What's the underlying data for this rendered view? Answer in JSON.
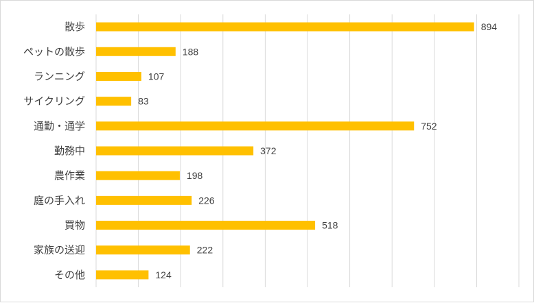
{
  "chart_data": {
    "type": "bar",
    "orientation": "horizontal",
    "categories": [
      "散歩",
      "ペットの散歩",
      "ランニング",
      "サイクリング",
      "通勤・通学",
      "勤務中",
      "農作業",
      "庭の手入れ",
      "買物",
      "家族の送迎",
      "その他"
    ],
    "values": [
      894,
      188,
      107,
      83,
      752,
      372,
      198,
      226,
      518,
      222,
      124
    ],
    "title": "",
    "xlabel": "",
    "ylabel": "",
    "xlim": [
      0,
      1000
    ],
    "grid": true,
    "legend": "none",
    "data_labels": true,
    "bar_color": "#FFC000"
  }
}
